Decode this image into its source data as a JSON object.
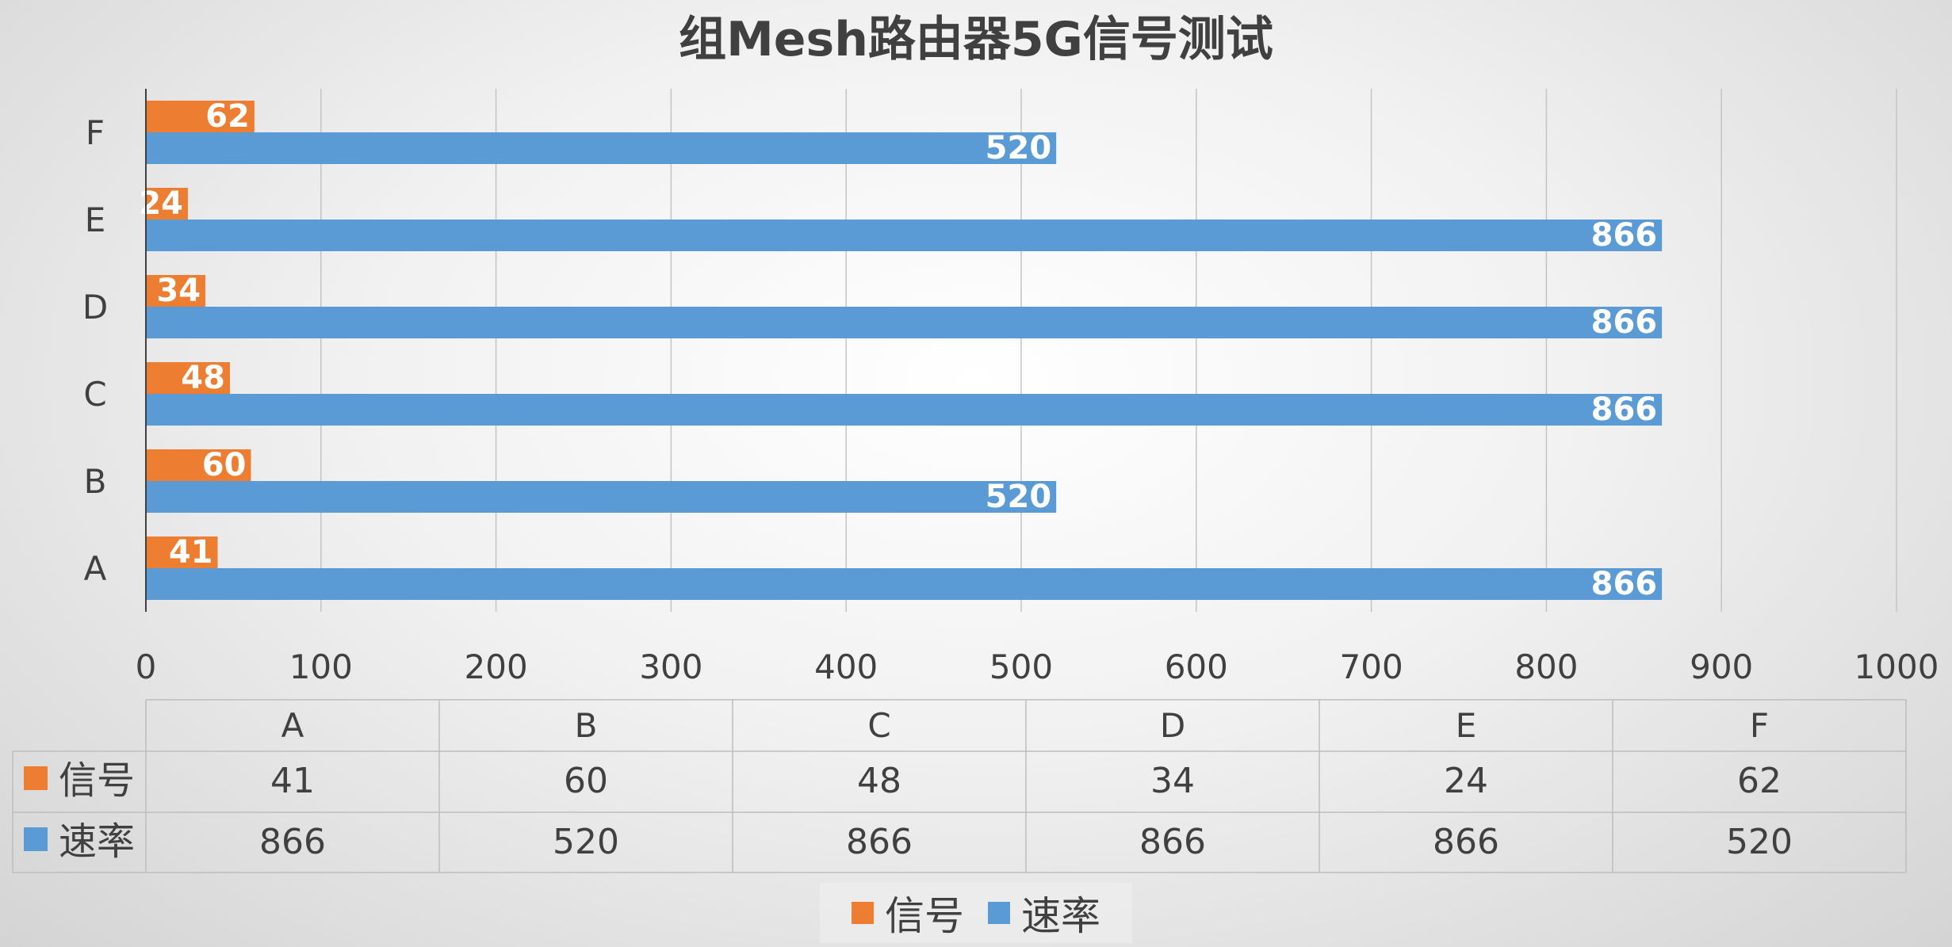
{
  "chart_data": {
    "type": "bar",
    "orientation": "horizontal",
    "title": "组Mesh路由器5G信号测试",
    "categories": [
      "A",
      "B",
      "C",
      "D",
      "E",
      "F"
    ],
    "series": [
      {
        "name": "信号",
        "color": "#ED7D31",
        "values": [
          41,
          60,
          48,
          34,
          24,
          62
        ]
      },
      {
        "name": "速率",
        "color": "#5B9BD5",
        "values": [
          866,
          520,
          866,
          866,
          866,
          520
        ]
      }
    ],
    "x_ticks": [
      "0",
      "100",
      "200",
      "300",
      "400",
      "500",
      "600",
      "700",
      "800",
      "900",
      "1000"
    ],
    "xlim": [
      0,
      1000
    ],
    "grid": "vertical",
    "data_table": true,
    "legend_position": "bottom"
  }
}
